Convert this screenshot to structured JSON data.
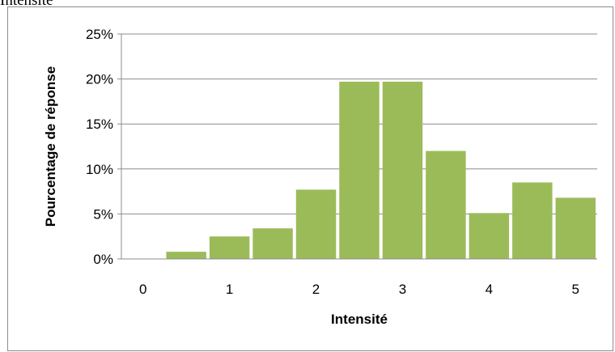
{
  "caption": "Intensité",
  "chart_data": {
    "type": "bar",
    "title": "",
    "xlabel": "Intensité",
    "ylabel": "Pourcentage de réponse",
    "x_ticks": [
      "0",
      "1",
      "2",
      "3",
      "4",
      "5"
    ],
    "x_tick_values": [
      0,
      1,
      2,
      3,
      4,
      5
    ],
    "bin_width": 0.5,
    "bin_start": 0,
    "values": [
      0.0,
      0.8,
      2.5,
      3.4,
      7.7,
      19.7,
      19.7,
      12.0,
      5.1,
      8.5,
      6.8
    ],
    "y_unit": "%",
    "y_ticks": [
      "0%",
      "5%",
      "10%",
      "15%",
      "20%",
      "25%"
    ],
    "y_tick_values": [
      0,
      5,
      10,
      15,
      20,
      25
    ],
    "ylim": [
      0,
      25
    ],
    "xlim": [
      -0.25,
      5.25
    ],
    "grid": true,
    "legend": "none",
    "bar_color": "#9bbb59"
  }
}
